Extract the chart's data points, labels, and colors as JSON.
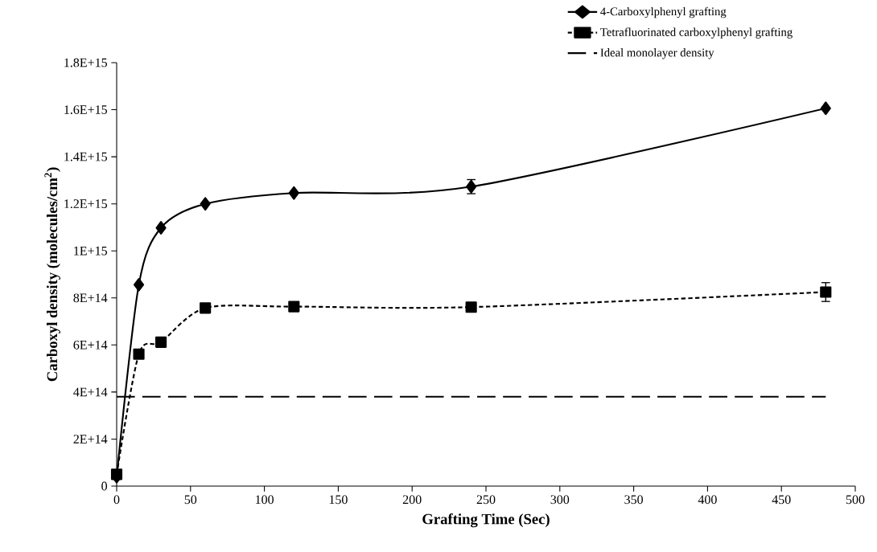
{
  "chart_data": {
    "type": "line",
    "xlabel": "Grafting Time (Sec)",
    "ylabel": "Carboxyl density (molecules/cm$^{2}$)",
    "x": [
      0,
      15,
      30,
      60,
      120,
      240,
      480
    ],
    "series": [
      {
        "name": "4-Carboxylphenyl grafting",
        "color": "#000000",
        "marker": "diamond",
        "line_style": "solid",
        "values": [
          40000000000000.0,
          856000000000000.0,
          1098000000000000.0,
          1200000000000000.0,
          1246000000000000.0,
          1273000000000000.0,
          1606000000000000.0
        ],
        "errors": [
          null,
          null,
          null,
          null,
          null,
          30000000000000.0,
          null
        ]
      },
      {
        "name": "Tetrafluorinated carboxylphenyl grafting",
        "color": "#000000",
        "marker": "square",
        "line_style": "dotted",
        "values": [
          50000000000000.0,
          561000000000000.0,
          612000000000000.0,
          757000000000000.0,
          763000000000000.0,
          761000000000000.0,
          825000000000000.0
        ],
        "errors": [
          null,
          null,
          null,
          null,
          null,
          null,
          40000000000000.0
        ]
      },
      {
        "name": "Ideal monolayer density",
        "color": "#000000",
        "marker": "none",
        "line_style": "dashed",
        "x": [
          0,
          480
        ],
        "values": [
          380000000000000.0,
          380000000000000.0
        ]
      }
    ],
    "xlim": [
      0,
      500
    ],
    "xticks": [
      0,
      50,
      100,
      150,
      200,
      250,
      300,
      350,
      400,
      450,
      500
    ],
    "ylim": [
      0,
      1800000000000000.0
    ],
    "yticks": [
      0,
      {
        "value": 200000000000000.0,
        "label": "2E+14"
      },
      {
        "value": 400000000000000.0,
        "label": "4E+14"
      },
      {
        "value": 600000000000000.0,
        "label": "6E+14"
      },
      {
        "value": 800000000000000.0,
        "label": "8E+14"
      },
      {
        "value": 1000000000000000.0,
        "label": "1E+15"
      },
      {
        "value": 1200000000000000.0,
        "label": "1.2E+15"
      },
      {
        "value": 1400000000000000.0,
        "label": "1.4E+15"
      },
      {
        "value": 1600000000000000.0,
        "label": "1.6E+15"
      },
      {
        "value": 1800000000000000.0,
        "label": "1.8E+15"
      }
    ],
    "grid": false,
    "legend": "top right"
  }
}
